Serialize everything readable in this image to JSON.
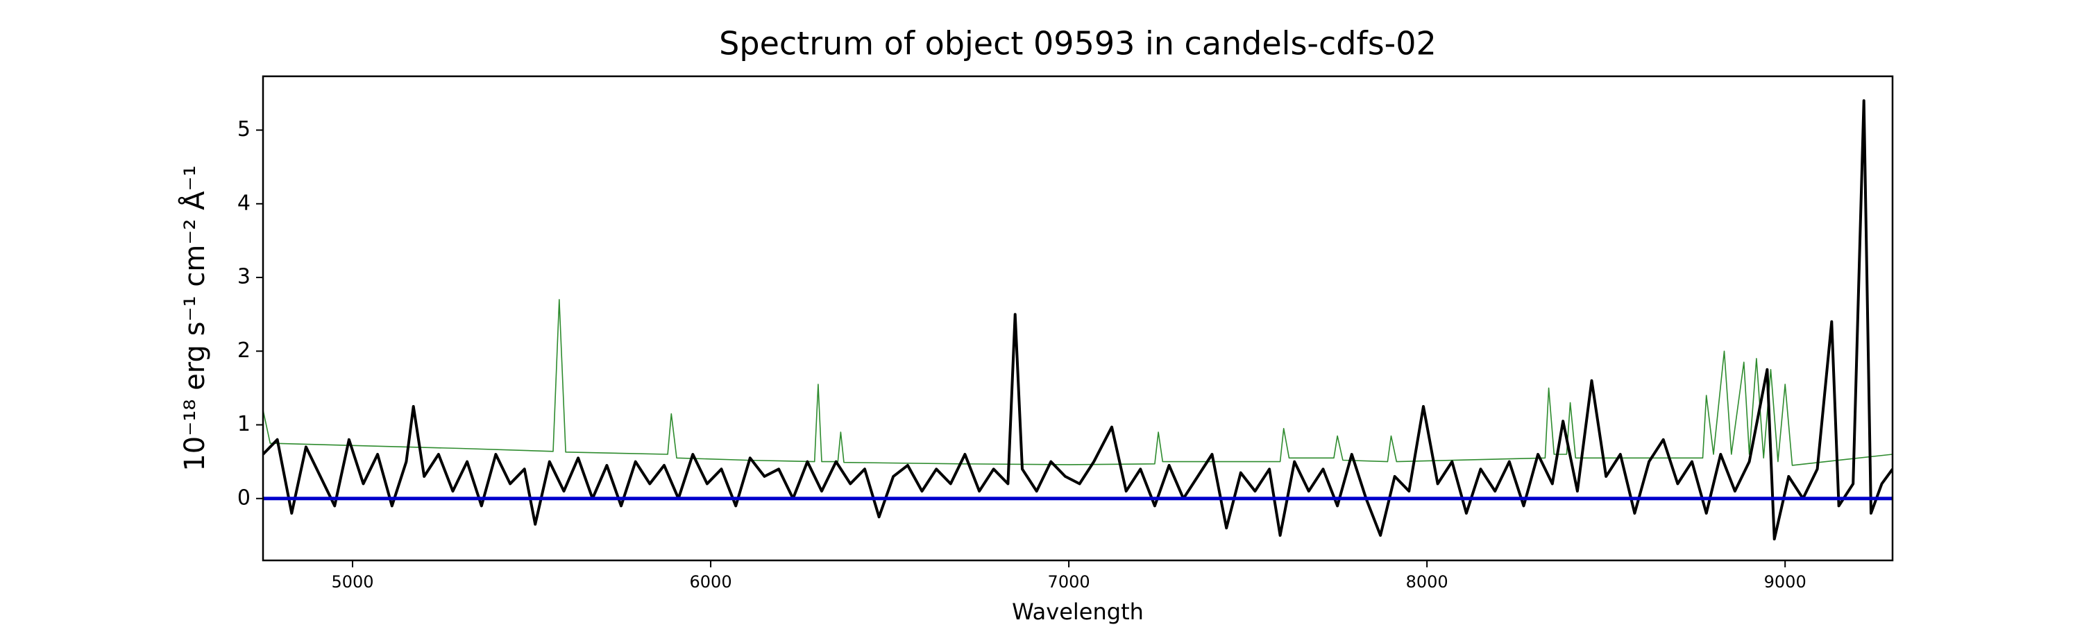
{
  "chart_data": {
    "type": "line",
    "title": "Spectrum of object 09593 in candels-cdfs-02",
    "x_label": "Wavelength",
    "y_label": "10⁻¹⁸ erg s⁻¹ cm⁻² Å⁻¹",
    "xlim": [
      4750,
      9300
    ],
    "ylim": [
      -0.84,
      5.73
    ],
    "xticks": [
      5000,
      6000,
      7000,
      8000,
      9000
    ],
    "yticks": [
      0,
      1,
      2,
      3,
      4,
      5
    ],
    "series": [
      {
        "color": "#2e8b2e",
        "width": 1.6,
        "x": [
          4750,
          4770,
          5000,
          5300,
          5560,
          5577,
          5595,
          5880,
          5890,
          5905,
          6100,
          6290,
          6300,
          6310,
          6355,
          6363,
          6372,
          6700,
          7000,
          7240,
          7250,
          7262,
          7590,
          7600,
          7615,
          7740,
          7750,
          7765,
          7890,
          7900,
          7915,
          8330,
          8340,
          8355,
          8390,
          8400,
          8415,
          8770,
          8780,
          8800,
          8830,
          8850,
          8885,
          8900,
          8920,
          8940,
          8960,
          8980,
          9000,
          9020,
          9300
        ],
        "values": [
          1.2,
          0.75,
          0.72,
          0.68,
          0.64,
          2.7,
          0.63,
          0.6,
          1.15,
          0.55,
          0.52,
          0.5,
          1.55,
          0.5,
          0.5,
          0.9,
          0.49,
          0.47,
          0.46,
          0.47,
          0.9,
          0.5,
          0.5,
          0.95,
          0.55,
          0.55,
          0.85,
          0.52,
          0.5,
          0.85,
          0.5,
          0.55,
          1.5,
          0.6,
          0.6,
          1.3,
          0.55,
          0.55,
          1.4,
          0.6,
          2.0,
          0.6,
          1.85,
          0.6,
          1.9,
          0.55,
          1.75,
          0.5,
          1.55,
          0.45,
          0.6
        ]
      },
      {
        "color": "#000000",
        "width": 4,
        "x": [
          4750,
          4790,
          4830,
          4870,
          4910,
          4950,
          4990,
          5030,
          5070,
          5110,
          5150,
          5170,
          5200,
          5240,
          5280,
          5320,
          5360,
          5400,
          5440,
          5480,
          5510,
          5550,
          5590,
          5630,
          5670,
          5710,
          5750,
          5790,
          5830,
          5870,
          5910,
          5950,
          5990,
          6030,
          6070,
          6110,
          6150,
          6190,
          6230,
          6270,
          6310,
          6350,
          6390,
          6430,
          6470,
          6510,
          6550,
          6590,
          6630,
          6670,
          6710,
          6750,
          6790,
          6830,
          6850,
          6870,
          6910,
          6950,
          6990,
          7030,
          7070,
          7120,
          7160,
          7200,
          7240,
          7280,
          7320,
          7360,
          7400,
          7440,
          7480,
          7520,
          7560,
          7590,
          7630,
          7670,
          7710,
          7750,
          7790,
          7830,
          7870,
          7910,
          7950,
          7990,
          8030,
          8070,
          8110,
          8150,
          8190,
          8230,
          8270,
          8310,
          8350,
          8380,
          8420,
          8460,
          8500,
          8540,
          8580,
          8620,
          8660,
          8700,
          8740,
          8780,
          8820,
          8860,
          8900,
          8950,
          8970,
          9010,
          9050,
          9090,
          9130,
          9150,
          9190,
          9220,
          9240,
          9270,
          9300
        ],
        "values": [
          0.6,
          0.8,
          -0.2,
          0.7,
          0.3,
          -0.1,
          0.8,
          0.2,
          0.6,
          -0.1,
          0.5,
          1.25,
          0.3,
          0.6,
          0.1,
          0.5,
          -0.1,
          0.6,
          0.2,
          0.4,
          -0.35,
          0.5,
          0.1,
          0.55,
          0.0,
          0.45,
          -0.1,
          0.5,
          0.2,
          0.45,
          0.0,
          0.6,
          0.2,
          0.4,
          -0.1,
          0.55,
          0.3,
          0.4,
          0.0,
          0.5,
          0.1,
          0.5,
          0.2,
          0.4,
          -0.25,
          0.3,
          0.45,
          0.1,
          0.4,
          0.2,
          0.6,
          0.1,
          0.4,
          0.2,
          2.5,
          0.4,
          0.1,
          0.5,
          0.3,
          0.2,
          0.5,
          0.97,
          0.1,
          0.4,
          -0.1,
          0.45,
          0.0,
          0.3,
          0.6,
          -0.4,
          0.35,
          0.1,
          0.4,
          -0.5,
          0.5,
          0.1,
          0.4,
          -0.1,
          0.6,
          0.0,
          -0.5,
          0.3,
          0.1,
          1.25,
          0.2,
          0.5,
          -0.2,
          0.4,
          0.1,
          0.5,
          -0.1,
          0.6,
          0.2,
          1.05,
          0.1,
          1.6,
          0.3,
          0.6,
          -0.2,
          0.5,
          0.8,
          0.2,
          0.5,
          -0.2,
          0.6,
          0.1,
          0.5,
          1.75,
          -0.55,
          0.3,
          0.0,
          0.4,
          2.4,
          -0.1,
          0.2,
          5.4,
          -0.2,
          0.2,
          0.4
        ]
      },
      {
        "color": "#0000cc",
        "width": 5,
        "x": [
          4750,
          9300
        ],
        "values": [
          0,
          0
        ]
      }
    ]
  }
}
